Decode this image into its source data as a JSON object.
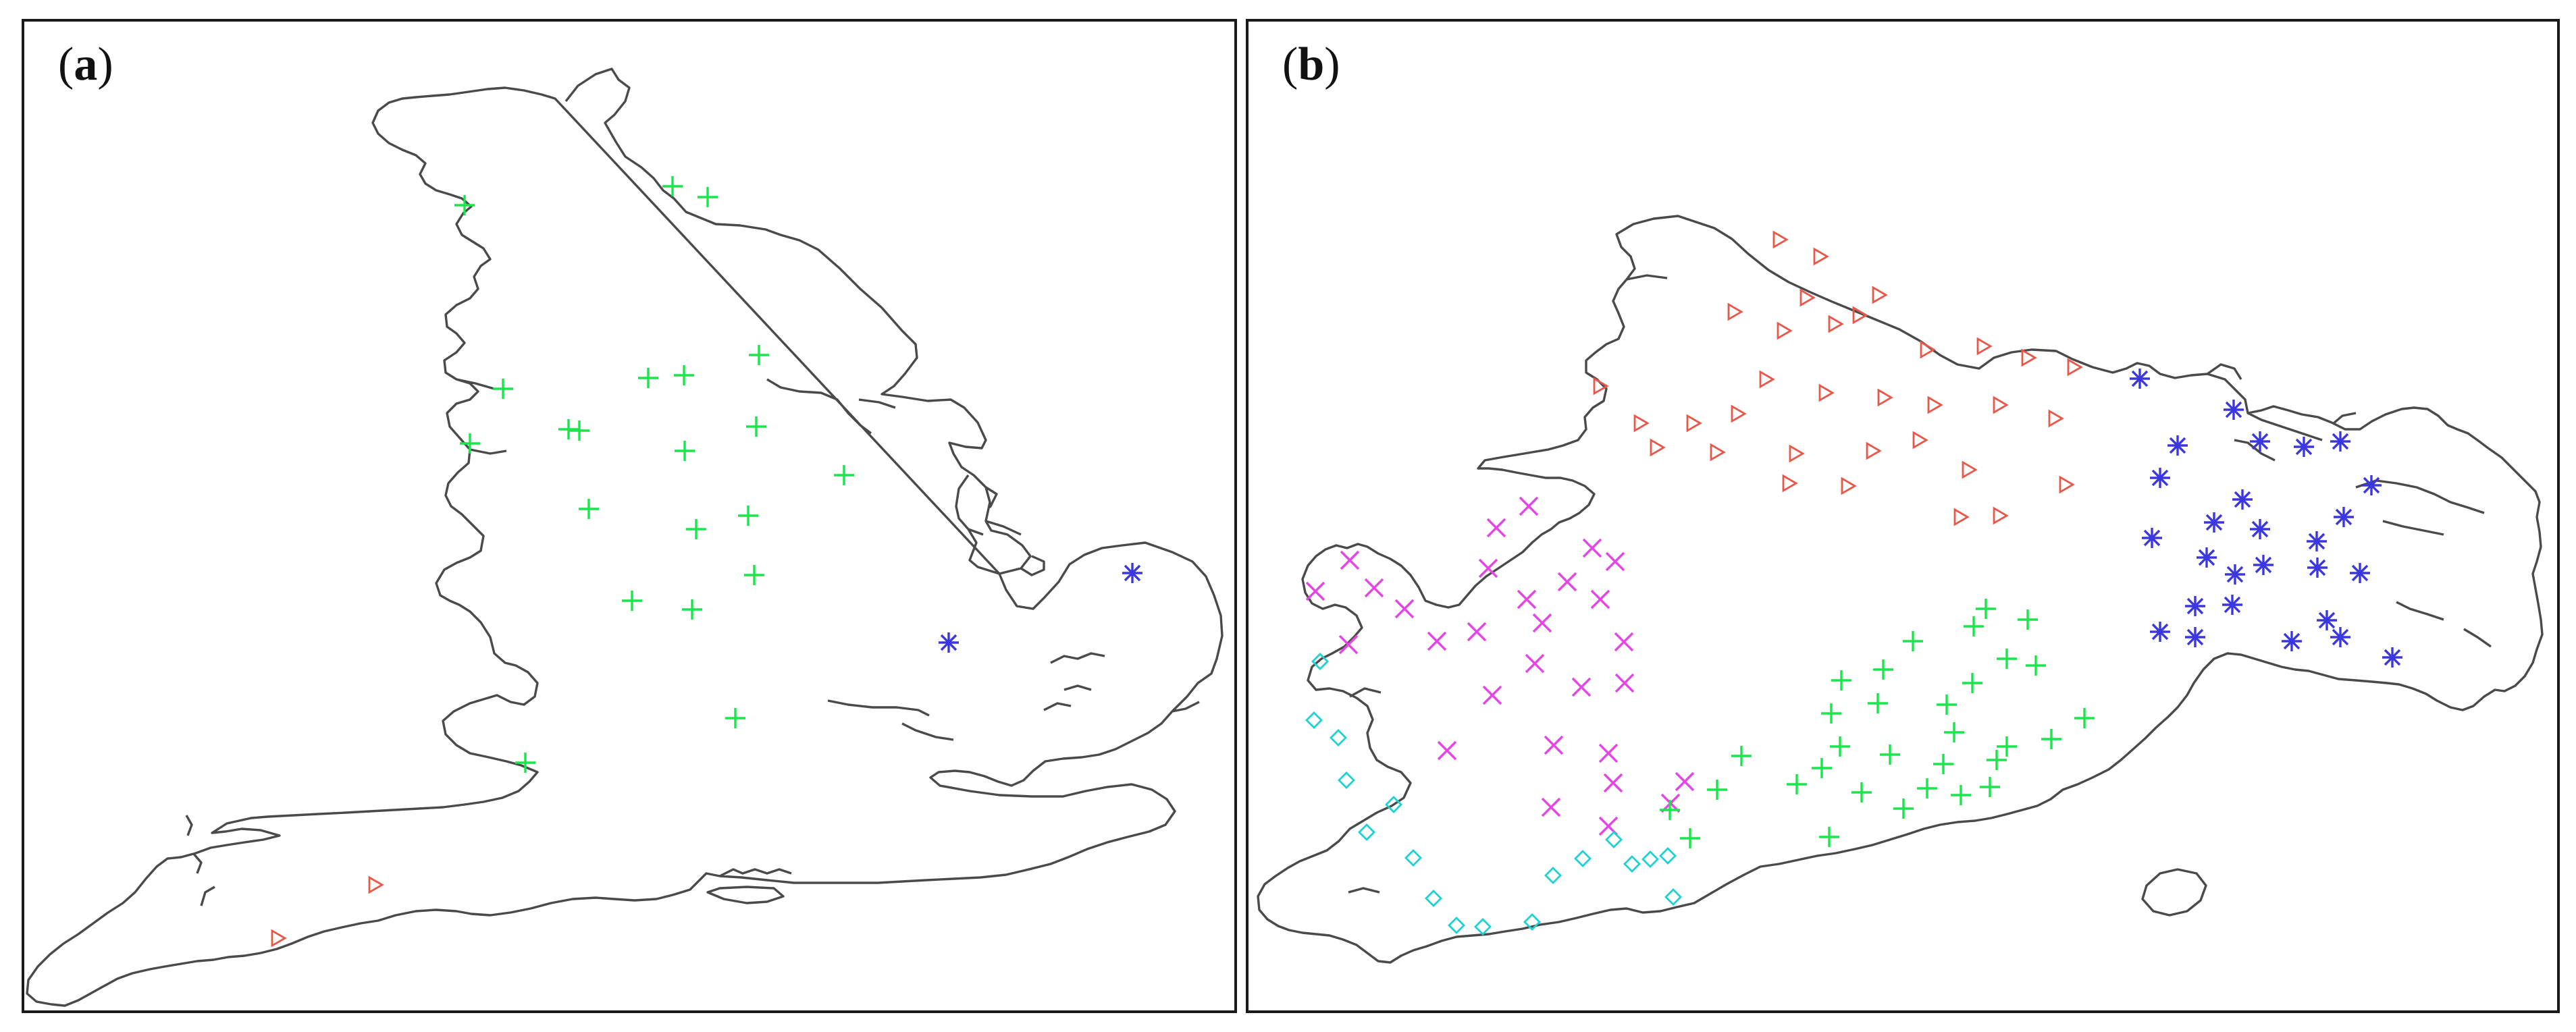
{
  "panels": [
    {
      "id": "a",
      "label_open": "(",
      "label_letter": "a",
      "label_close": ")"
    },
    {
      "id": "b",
      "label_open": "(",
      "label_letter": "b",
      "label_close": ")"
    }
  ],
  "colors": {
    "plus": "#19e64a",
    "asterisk": "#3b37e0",
    "triangle": "#e8584a",
    "cross": "#e545e5",
    "diamond": "#1fd2d2",
    "coast": "#4a4a4a"
  },
  "legend_symbols": [
    "plus",
    "asterisk",
    "triangle",
    "cross",
    "diamond"
  ]
}
